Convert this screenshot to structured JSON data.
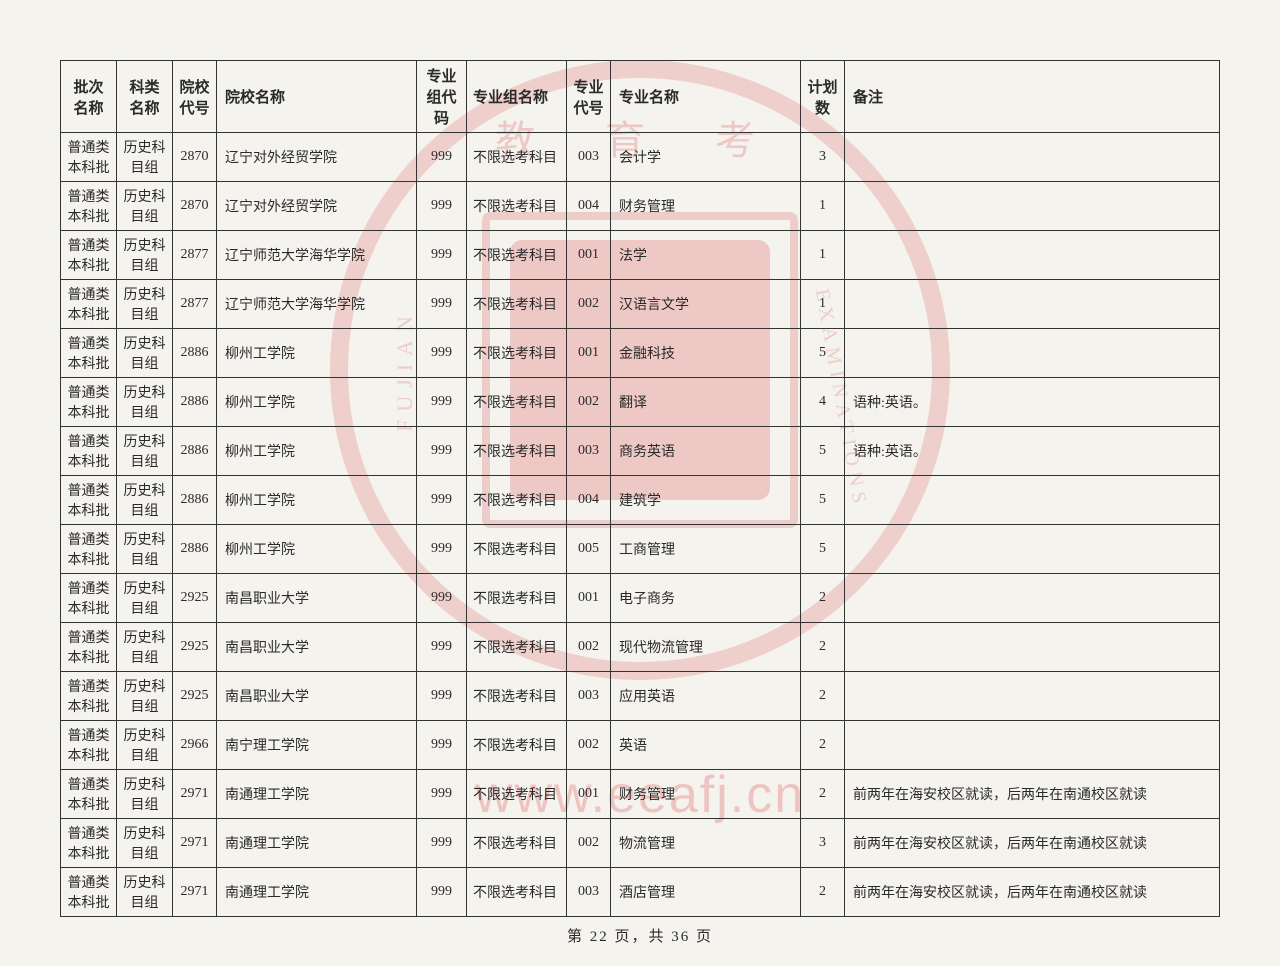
{
  "watermark": {
    "url": "www.eeafj.cn",
    "seal_top": "教 育 考",
    "seal_left": "FUJIAN",
    "seal_right": "EXAMINATIONS"
  },
  "table": {
    "headers": {
      "batch": "批次名称",
      "subject": "科类名称",
      "school_code": "院校代号",
      "school_name": "院校名称",
      "group_code": "专业组代码",
      "group_name": "专业组名称",
      "major_code": "专业代号",
      "major_name": "专业名称",
      "plan_count": "计划数",
      "remark": "备注"
    },
    "rows": [
      {
        "batch": "普通类本科批",
        "subject": "历史科目组",
        "school_code": "2870",
        "school_name": "辽宁对外经贸学院",
        "group_code": "999",
        "group_name": "不限选考科目",
        "major_code": "003",
        "major_name": "会计学",
        "plan": "3",
        "remark": ""
      },
      {
        "batch": "普通类本科批",
        "subject": "历史科目组",
        "school_code": "2870",
        "school_name": "辽宁对外经贸学院",
        "group_code": "999",
        "group_name": "不限选考科目",
        "major_code": "004",
        "major_name": "财务管理",
        "plan": "1",
        "remark": ""
      },
      {
        "batch": "普通类本科批",
        "subject": "历史科目组",
        "school_code": "2877",
        "school_name": "辽宁师范大学海华学院",
        "group_code": "999",
        "group_name": "不限选考科目",
        "major_code": "001",
        "major_name": "法学",
        "plan": "1",
        "remark": ""
      },
      {
        "batch": "普通类本科批",
        "subject": "历史科目组",
        "school_code": "2877",
        "school_name": "辽宁师范大学海华学院",
        "group_code": "999",
        "group_name": "不限选考科目",
        "major_code": "002",
        "major_name": "汉语言文学",
        "plan": "1",
        "remark": ""
      },
      {
        "batch": "普通类本科批",
        "subject": "历史科目组",
        "school_code": "2886",
        "school_name": "柳州工学院",
        "group_code": "999",
        "group_name": "不限选考科目",
        "major_code": "001",
        "major_name": "金融科技",
        "plan": "5",
        "remark": ""
      },
      {
        "batch": "普通类本科批",
        "subject": "历史科目组",
        "school_code": "2886",
        "school_name": "柳州工学院",
        "group_code": "999",
        "group_name": "不限选考科目",
        "major_code": "002",
        "major_name": "翻译",
        "plan": "4",
        "remark": "语种:英语。"
      },
      {
        "batch": "普通类本科批",
        "subject": "历史科目组",
        "school_code": "2886",
        "school_name": "柳州工学院",
        "group_code": "999",
        "group_name": "不限选考科目",
        "major_code": "003",
        "major_name": "商务英语",
        "plan": "5",
        "remark": "语种:英语。"
      },
      {
        "batch": "普通类本科批",
        "subject": "历史科目组",
        "school_code": "2886",
        "school_name": "柳州工学院",
        "group_code": "999",
        "group_name": "不限选考科目",
        "major_code": "004",
        "major_name": "建筑学",
        "plan": "5",
        "remark": ""
      },
      {
        "batch": "普通类本科批",
        "subject": "历史科目组",
        "school_code": "2886",
        "school_name": "柳州工学院",
        "group_code": "999",
        "group_name": "不限选考科目",
        "major_code": "005",
        "major_name": "工商管理",
        "plan": "5",
        "remark": ""
      },
      {
        "batch": "普通类本科批",
        "subject": "历史科目组",
        "school_code": "2925",
        "school_name": "南昌职业大学",
        "group_code": "999",
        "group_name": "不限选考科目",
        "major_code": "001",
        "major_name": "电子商务",
        "plan": "2",
        "remark": ""
      },
      {
        "batch": "普通类本科批",
        "subject": "历史科目组",
        "school_code": "2925",
        "school_name": "南昌职业大学",
        "group_code": "999",
        "group_name": "不限选考科目",
        "major_code": "002",
        "major_name": "现代物流管理",
        "plan": "2",
        "remark": ""
      },
      {
        "batch": "普通类本科批",
        "subject": "历史科目组",
        "school_code": "2925",
        "school_name": "南昌职业大学",
        "group_code": "999",
        "group_name": "不限选考科目",
        "major_code": "003",
        "major_name": "应用英语",
        "plan": "2",
        "remark": ""
      },
      {
        "batch": "普通类本科批",
        "subject": "历史科目组",
        "school_code": "2966",
        "school_name": "南宁理工学院",
        "group_code": "999",
        "group_name": "不限选考科目",
        "major_code": "002",
        "major_name": "英语",
        "plan": "2",
        "remark": ""
      },
      {
        "batch": "普通类本科批",
        "subject": "历史科目组",
        "school_code": "2971",
        "school_name": "南通理工学院",
        "group_code": "999",
        "group_name": "不限选考科目",
        "major_code": "001",
        "major_name": "财务管理",
        "plan": "2",
        "remark": "前两年在海安校区就读，后两年在南通校区就读"
      },
      {
        "batch": "普通类本科批",
        "subject": "历史科目组",
        "school_code": "2971",
        "school_name": "南通理工学院",
        "group_code": "999",
        "group_name": "不限选考科目",
        "major_code": "002",
        "major_name": "物流管理",
        "plan": "3",
        "remark": "前两年在海安校区就读，后两年在南通校区就读"
      },
      {
        "batch": "普通类本科批",
        "subject": "历史科目组",
        "school_code": "2971",
        "school_name": "南通理工学院",
        "group_code": "999",
        "group_name": "不限选考科目",
        "major_code": "003",
        "major_name": "酒店管理",
        "plan": "2",
        "remark": "前两年在海安校区就读，后两年在南通校区就读"
      }
    ]
  },
  "footer": {
    "page_text": "第 22 页，共 36 页"
  }
}
